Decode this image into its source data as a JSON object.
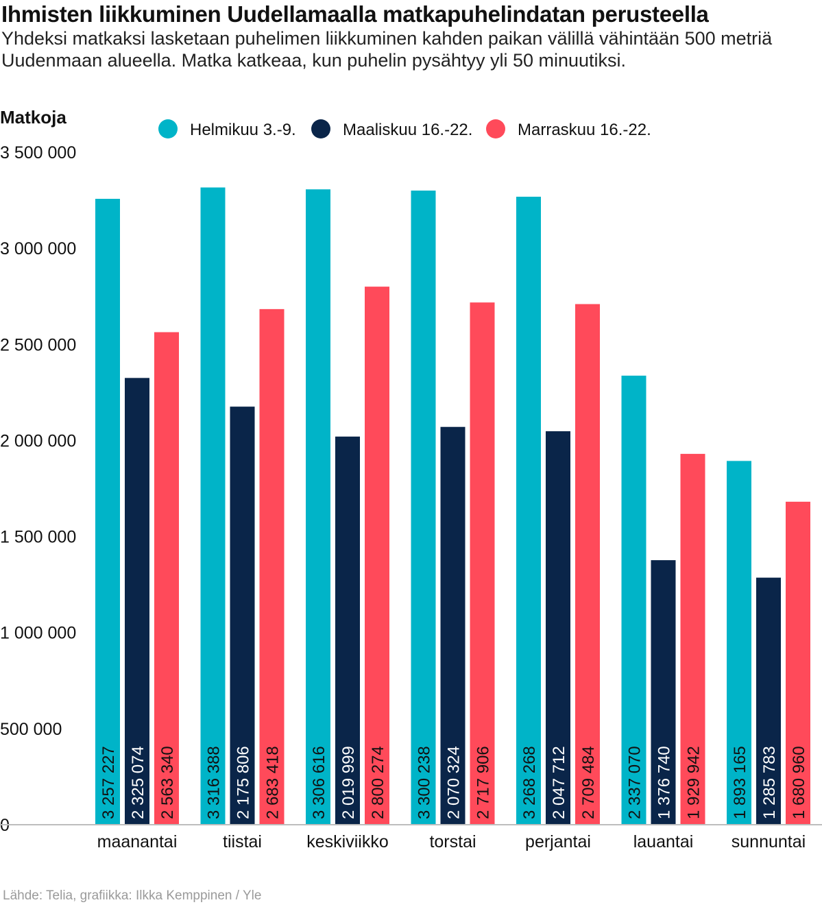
{
  "title": "Ihmisten liikkuminen Uudellamaalla matkapuhelindatan perusteella",
  "subtitle": "Yhdeksi matkaksi lasketaan puhelimen liikkuminen kahden paikan välillä vähintään 500 metriä Uudenmaan alueella. Matka katkeaa, kun puhelin pysähtyy yli 50 minuutiksi.",
  "source": "Lähde: Telia, grafiikka: Ilkka Kemppinen / Yle",
  "colors": {
    "series1": "#00b4c8",
    "series2": "#0a2549",
    "series3": "#ff4a5a",
    "axis": "#bdbdbd"
  },
  "chart_data": {
    "type": "bar",
    "title": "Ihmisten liikkuminen Uudellamaalla matkapuhelindatan perusteella",
    "ylabel": "Matkoja",
    "xlabel": "",
    "ylim": [
      0,
      3500000
    ],
    "yticks": [
      0,
      500000,
      1000000,
      1500000,
      2000000,
      2500000,
      3000000,
      3500000
    ],
    "ytick_labels": [
      "0",
      "500 000",
      "1 000 000",
      "1 500 000",
      "2 000 000",
      "2 500 000",
      "3 000 000",
      "3 500 000"
    ],
    "legend_position": "top",
    "grid": false,
    "categories": [
      "maanantai",
      "tiistai",
      "keskiviikko",
      "torstai",
      "perjantai",
      "lauantai",
      "sunnuntai"
    ],
    "series": [
      {
        "name": "Helmikuu 3.-9.",
        "color": "#00b4c8",
        "values": [
          3257227,
          3316388,
          3306616,
          3300238,
          3268268,
          2337070,
          1893165
        ],
        "labels": [
          "3 257 227",
          "3 316 388",
          "3 306 616",
          "3 300 238",
          "3 268 268",
          "2 337 070",
          "1 893 165"
        ]
      },
      {
        "name": "Maaliskuu 16.-22.",
        "color": "#0a2549",
        "values": [
          2325074,
          2175806,
          2019999,
          2070324,
          2047712,
          1376740,
          1285783
        ],
        "labels": [
          "2 325 074",
          "2 175 806",
          "2 019 999",
          "2 070 324",
          "2 047 712",
          "1 376 740",
          "1 285 783"
        ]
      },
      {
        "name": "Marraskuu 16.-22.",
        "color": "#ff4a5a",
        "values": [
          2563340,
          2683418,
          2800274,
          2717906,
          2709484,
          1929942,
          1680960
        ],
        "labels": [
          "2 563 340",
          "2 683 418",
          "2 800 274",
          "2 717 906",
          "2 709 484",
          "1 929 942",
          "1 680 960"
        ]
      }
    ]
  }
}
